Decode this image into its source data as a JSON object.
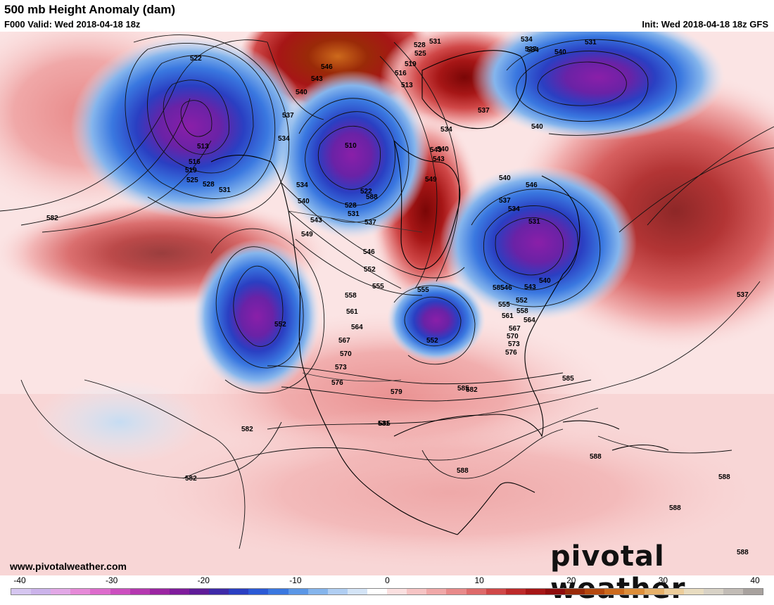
{
  "header": {
    "title": "500 mb Height Anomaly (dam)",
    "valid": "F000 Valid: Wed 2018-04-18 18z",
    "init": "Init: Wed 2018-04-18 18z GFS"
  },
  "footer": {
    "url": "www.pivotalweather.com",
    "brand": "pivotal weather"
  },
  "colorbar": {
    "ticks": [
      "-40",
      "-30",
      "-20",
      "-10",
      "0",
      "10",
      "20",
      "30",
      "40"
    ],
    "colors": [
      "#d6c6f0",
      "#cbb3ea",
      "#e2a8e6",
      "#e68ad8",
      "#dd6ccc",
      "#cc4fbf",
      "#b538b0",
      "#9b25a2",
      "#7f1c9c",
      "#5f1c98",
      "#3e2aa8",
      "#2a3fc2",
      "#2b5ad6",
      "#3a78e0",
      "#5b97e6",
      "#85b5ec",
      "#b0cef2",
      "#d4e4f6",
      "#ffffff",
      "#fbe0e0",
      "#f6c4c4",
      "#f0a8a8",
      "#e88a8a",
      "#de6a6a",
      "#d04848",
      "#bd2a2a",
      "#a61616",
      "#8f0c0c",
      "#9a2a08",
      "#b5480e",
      "#cd6a1c",
      "#dd8e3a",
      "#e6b068",
      "#eccd9a",
      "#e8dcc0",
      "#d8d2c6",
      "#c2bcb6",
      "#a8a29e"
    ]
  },
  "contour_labels": [
    "522",
    "513",
    "516",
    "519",
    "525",
    "528",
    "531",
    "534",
    "537",
    "540",
    "543",
    "546",
    "549",
    "552",
    "555",
    "558",
    "561",
    "564",
    "567",
    "570",
    "573",
    "576",
    "579",
    "582",
    "585",
    "588",
    "510"
  ],
  "map_labels": [
    {
      "t": "522",
      "k": "a1"
    },
    {
      "t": "513",
      "k": "a2"
    },
    {
      "t": "516",
      "k": "a3"
    },
    {
      "t": "519",
      "k": "a4"
    },
    {
      "t": "525",
      "k": "a5"
    },
    {
      "t": "528",
      "k": "a6"
    },
    {
      "t": "531",
      "k": "a7"
    },
    {
      "t": "582",
      "k": "a8"
    },
    {
      "t": "534",
      "k": "a9"
    },
    {
      "t": "537",
      "k": "a10"
    },
    {
      "t": "540",
      "k": "a11"
    },
    {
      "t": "543",
      "k": "a12"
    },
    {
      "t": "546",
      "k": "a13"
    },
    {
      "t": "510",
      "k": "a14"
    },
    {
      "t": "522",
      "k": "a15"
    },
    {
      "t": "528",
      "k": "a16"
    },
    {
      "t": "531",
      "k": "a17"
    },
    {
      "t": "537",
      "k": "a18"
    },
    {
      "t": "534",
      "k": "a19"
    },
    {
      "t": "540",
      "k": "a20"
    },
    {
      "t": "543",
      "k": "a21"
    },
    {
      "t": "549",
      "k": "a22"
    },
    {
      "t": "546",
      "k": "a23"
    },
    {
      "t": "552",
      "k": "a24"
    },
    {
      "t": "555",
      "k": "a25"
    },
    {
      "t": "558",
      "k": "a26"
    },
    {
      "t": "561",
      "k": "a27"
    },
    {
      "t": "564",
      "k": "a28"
    },
    {
      "t": "567",
      "k": "a29"
    },
    {
      "t": "570",
      "k": "a30"
    },
    {
      "t": "573",
      "k": "a31"
    },
    {
      "t": "576",
      "k": "a32"
    },
    {
      "t": "579",
      "k": "a33"
    },
    {
      "t": "582",
      "k": "a34"
    },
    {
      "t": "585",
      "k": "a35"
    },
    {
      "t": "588",
      "k": "a36"
    },
    {
      "t": "552",
      "k": "a37"
    },
    {
      "t": "555",
      "k": "a38"
    },
    {
      "t": "552",
      "k": "a39"
    },
    {
      "t": "528",
      "k": "a40"
    },
    {
      "t": "525",
      "k": "a41"
    },
    {
      "t": "519",
      "k": "a42"
    },
    {
      "t": "516",
      "k": "a43"
    },
    {
      "t": "513",
      "k": "a44"
    },
    {
      "t": "531",
      "k": "a45"
    },
    {
      "t": "534",
      "k": "a46"
    },
    {
      "t": "540",
      "k": "a47"
    },
    {
      "t": "537",
      "k": "a48"
    },
    {
      "t": "534",
      "k": "a49"
    },
    {
      "t": "543",
      "k": "a50"
    },
    {
      "t": "540",
      "k": "a51"
    },
    {
      "t": "537",
      "k": "a52"
    },
    {
      "t": "534",
      "k": "a53"
    },
    {
      "t": "531",
      "k": "a54"
    },
    {
      "t": "540",
      "k": "a55"
    },
    {
      "t": "543",
      "k": "a56"
    },
    {
      "t": "549",
      "k": "a57"
    },
    {
      "t": "546",
      "k": "a58"
    },
    {
      "t": "552",
      "k": "a59"
    },
    {
      "t": "555",
      "k": "a60"
    },
    {
      "t": "558",
      "k": "a61"
    },
    {
      "t": "561",
      "k": "a62"
    },
    {
      "t": "564",
      "k": "a63"
    },
    {
      "t": "567",
      "k": "a64"
    },
    {
      "t": "570",
      "k": "a65"
    },
    {
      "t": "573",
      "k": "a66"
    },
    {
      "t": "576",
      "k": "a67"
    },
    {
      "t": "582",
      "k": "a68"
    },
    {
      "t": "585",
      "k": "a69"
    },
    {
      "t": "588",
      "k": "a70"
    },
    {
      "t": "588",
      "k": "a71"
    },
    {
      "t": "588",
      "k": "a72"
    },
    {
      "t": "588",
      "k": "a73"
    },
    {
      "t": "537",
      "k": "a74"
    },
    {
      "t": "531",
      "k": "a75"
    },
    {
      "t": "540",
      "k": "a76"
    },
    {
      "t": "534",
      "k": "a77"
    },
    {
      "t": "537",
      "k": "a78"
    },
    {
      "t": "540",
      "k": "a79"
    },
    {
      "t": "543",
      "k": "a80"
    },
    {
      "t": "546",
      "k": "a81"
    },
    {
      "t": "585",
      "k": "a82"
    },
    {
      "t": "582",
      "k": "a83"
    },
    {
      "t": "585",
      "k": "a84"
    },
    {
      "t": "531",
      "k": "a85"
    },
    {
      "t": "588",
      "k": "a86"
    }
  ],
  "colors": {
    "warm_core": "#8f0c0c",
    "warm": "#d04848",
    "warm_light": "#f6c4c4",
    "cold_core": "#7f1c9c",
    "cold": "#2a3fc2",
    "cold_light": "#b0cef2",
    "orange_core": "#cd6a1c"
  }
}
